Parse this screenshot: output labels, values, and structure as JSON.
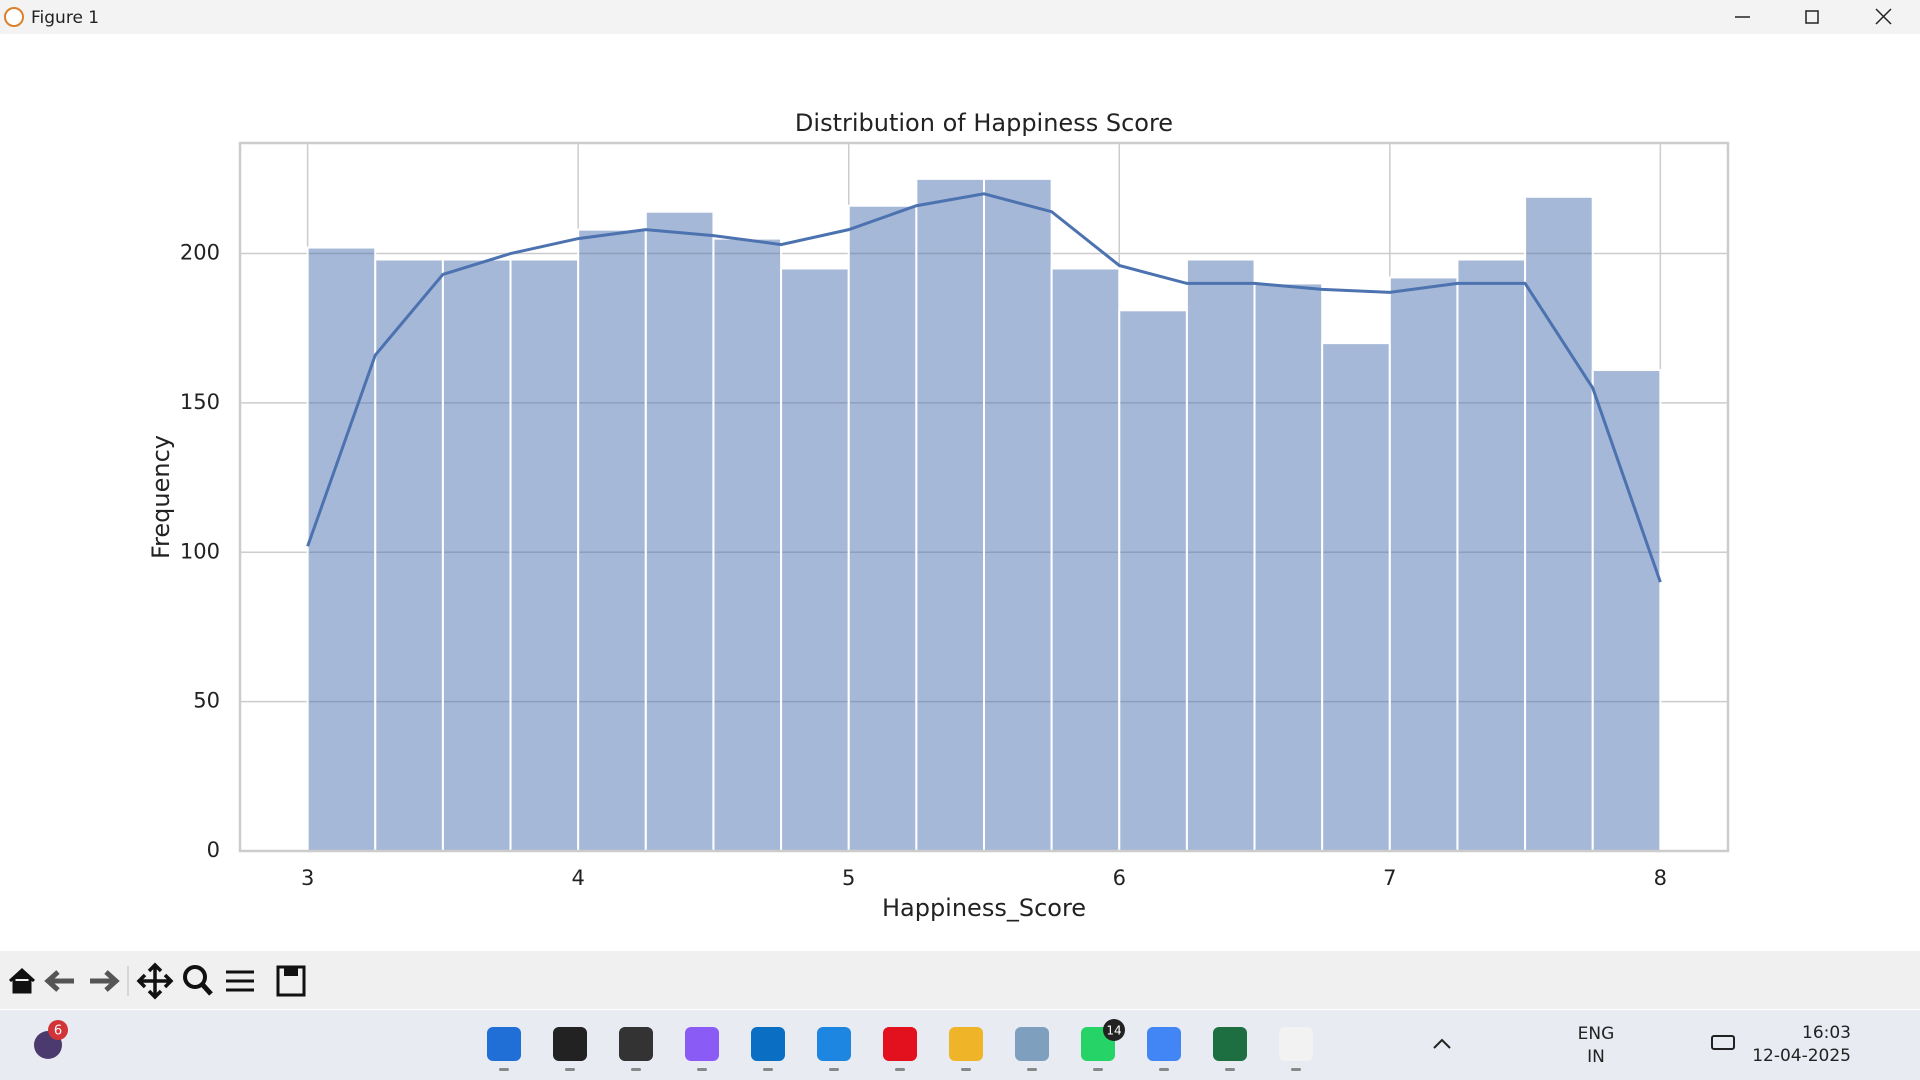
{
  "window": {
    "title": "Figure 1"
  },
  "chart_data": {
    "type": "histogram",
    "title": "Distribution of Happiness Score",
    "x_label": "Happiness_Score",
    "y_label": "Frequency",
    "bins": [
      3,
      3.25,
      3.5,
      3.75,
      4,
      4.25,
      4.5,
      4.75,
      5,
      5.25,
      5.5,
      5.75,
      6,
      6.25,
      6.5,
      6.75,
      7,
      7.25,
      7.5,
      7.75,
      8
    ],
    "counts": [
      202,
      198,
      198,
      198,
      208,
      214,
      205,
      195,
      216,
      225,
      225,
      195,
      181,
      198,
      190,
      170,
      192,
      198,
      219,
      161
    ],
    "color": "#4c72b0",
    "kde": {
      "color": "#4c72b0",
      "x": [
        3,
        3.25,
        3.5,
        3.75,
        4,
        4.25,
        4.5,
        4.75,
        5,
        5.25,
        5.5,
        5.75,
        6,
        6.25,
        6.5,
        6.75,
        7,
        7.25,
        7.5,
        7.75,
        8
      ],
      "values": [
        102,
        166,
        193,
        200,
        205,
        208,
        206,
        203,
        208,
        216,
        220,
        214,
        196,
        190,
        190,
        188,
        187,
        190,
        190,
        155,
        90
      ]
    },
    "xlim": [
      2.75,
      8.25
    ],
    "xticks": [
      3,
      4,
      5,
      6,
      7,
      8
    ],
    "ylim": [
      0,
      237
    ],
    "yticks": [
      0,
      50,
      100,
      150,
      200
    ],
    "grid": true
  },
  "taskbar": {
    "badge_left": "6",
    "badge_whatsapp": "14",
    "lang": "ENG",
    "region": "IN",
    "time": "16:03",
    "date": "12-04-2025"
  }
}
